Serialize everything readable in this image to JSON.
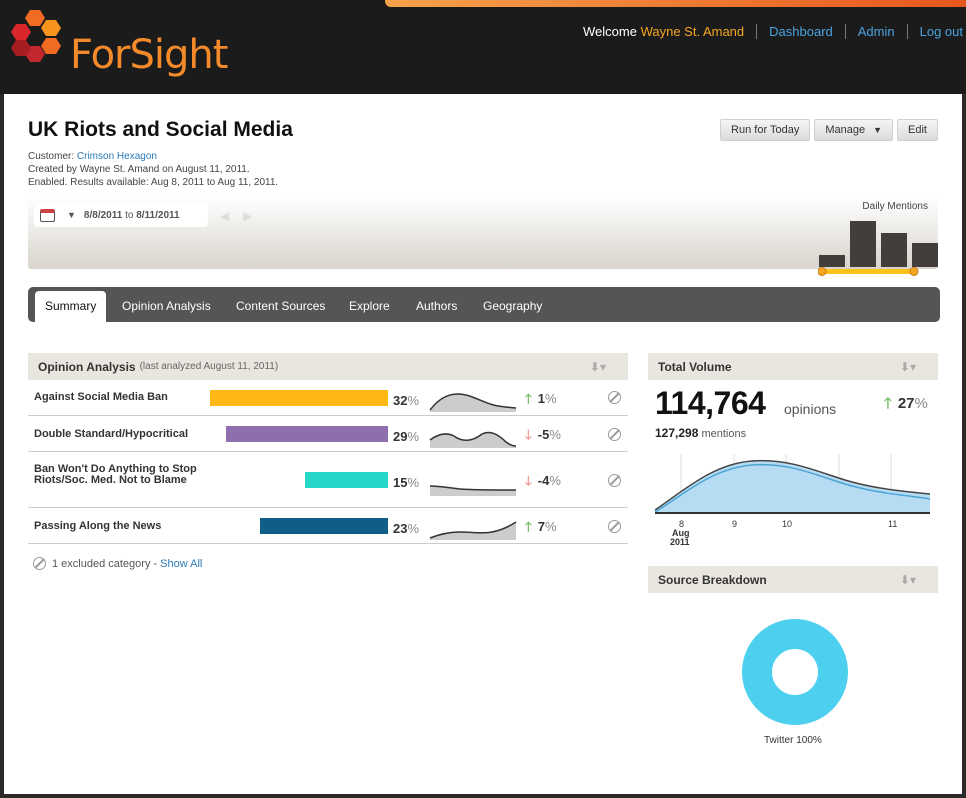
{
  "header": {
    "logo_text": "ForSight",
    "welcome": "Welcome",
    "user": "Wayne St. Amand",
    "nav": [
      "Dashboard",
      "Admin",
      "Log out"
    ]
  },
  "page": {
    "title": "UK Riots and Social Media",
    "customer_label": "Customer:",
    "customer": "Crimson Hexagon",
    "created": "Created by Wayne St. Amand on August 11, 2011.",
    "enabled": "Enabled. Results available: Aug 8, 2011 to Aug 11, 2011."
  },
  "actions": {
    "run": "Run for Today",
    "manage": "Manage",
    "edit": "Edit"
  },
  "timeline": {
    "date_from": "8/8/2011",
    "to": "to",
    "date_to": "8/11/2011",
    "daily_label": "Daily Mentions"
  },
  "tabs": [
    "Summary",
    "Opinion Analysis",
    "Content Sources",
    "Explore",
    "Authors",
    "Geography"
  ],
  "opinion": {
    "title": "Opinion Analysis",
    "subtitle": "(last analyzed August 11, 2011)",
    "pct_symbol": "%",
    "rows": [
      {
        "label": "Against Social Media Ban",
        "pct": "32",
        "change": "1",
        "direction": "up",
        "color": "#fdb813"
      },
      {
        "label": "Double Standard/Hypocritical",
        "pct": "29",
        "change": "-5",
        "direction": "down",
        "color": "#8e6fae"
      },
      {
        "label": "Ban Won't Do Anything to Stop Riots/Soc. Med. Not to Blame",
        "pct": "15",
        "change": "-4",
        "direction": "down",
        "color": "#26d7c9"
      },
      {
        "label": "Passing Along the News",
        "pct": "23",
        "change": "7",
        "direction": "up",
        "color": "#0f5e85"
      }
    ],
    "excluded_text": "1 excluded category -",
    "show_all": "Show All"
  },
  "volume": {
    "title": "Total Volume",
    "opinions": "114,764",
    "opinions_unit": "opinions",
    "change": "27",
    "mentions": "127,298",
    "mentions_unit": "mentions",
    "x_ticks": [
      "8",
      "9",
      "10",
      "11"
    ],
    "x_sub_month": "Aug",
    "x_sub_year": "2011"
  },
  "source": {
    "title": "Source Breakdown",
    "label": "Twitter 100%",
    "color": "#4dd0f0"
  }
}
